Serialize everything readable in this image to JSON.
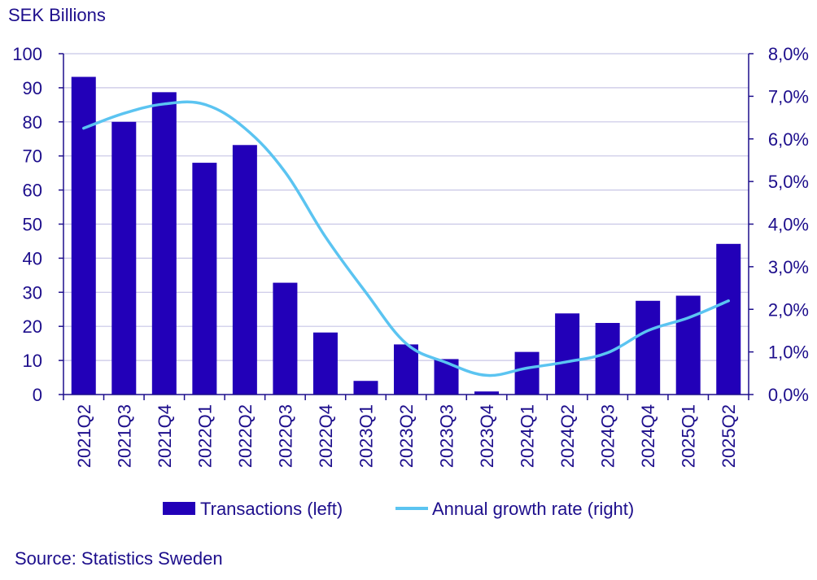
{
  "chart_data": {
    "type": "bar",
    "left_unit_label": "SEK Billions",
    "source": "Source: Statistics Sweden",
    "categories": [
      "2021Q2",
      "2021Q3",
      "2021Q4",
      "2022Q1",
      "2022Q2",
      "2022Q3",
      "2022Q4",
      "2023Q1",
      "2023Q2",
      "2023Q3",
      "2023Q4",
      "2024Q1",
      "2024Q2",
      "2024Q3",
      "2024Q4",
      "2025Q1",
      "2025Q2"
    ],
    "series": [
      {
        "name": "Transactions (left)",
        "type": "bar",
        "axis": "left",
        "color": "#2200b8",
        "values": [
          93.2,
          80.0,
          88.7,
          68.0,
          73.2,
          32.8,
          18.2,
          4.0,
          14.7,
          10.4,
          0.9,
          12.5,
          23.8,
          21.0,
          27.5,
          29.0,
          44.2
        ]
      },
      {
        "name": "Annual growth rate (right)",
        "type": "line",
        "axis": "right",
        "color": "#5bc4f1",
        "values": [
          6.25,
          6.6,
          6.82,
          6.81,
          6.25,
          5.22,
          3.7,
          2.4,
          1.2,
          0.75,
          0.45,
          0.62,
          0.77,
          0.98,
          1.5,
          1.8,
          2.2
        ]
      }
    ],
    "left_axis": {
      "ylim": [
        0,
        100
      ],
      "ticks": [
        "0",
        "10",
        "20",
        "30",
        "40",
        "50",
        "60",
        "70",
        "80",
        "90",
        "100"
      ]
    },
    "right_axis": {
      "ylim": [
        0,
        8
      ],
      "ticks": [
        "0,0%",
        "1,0%",
        "2,0%",
        "3,0%",
        "4,0%",
        "5,0%",
        "6,0%",
        "7,0%",
        "8,0%"
      ]
    },
    "grid": true,
    "legend_position": "bottom"
  }
}
